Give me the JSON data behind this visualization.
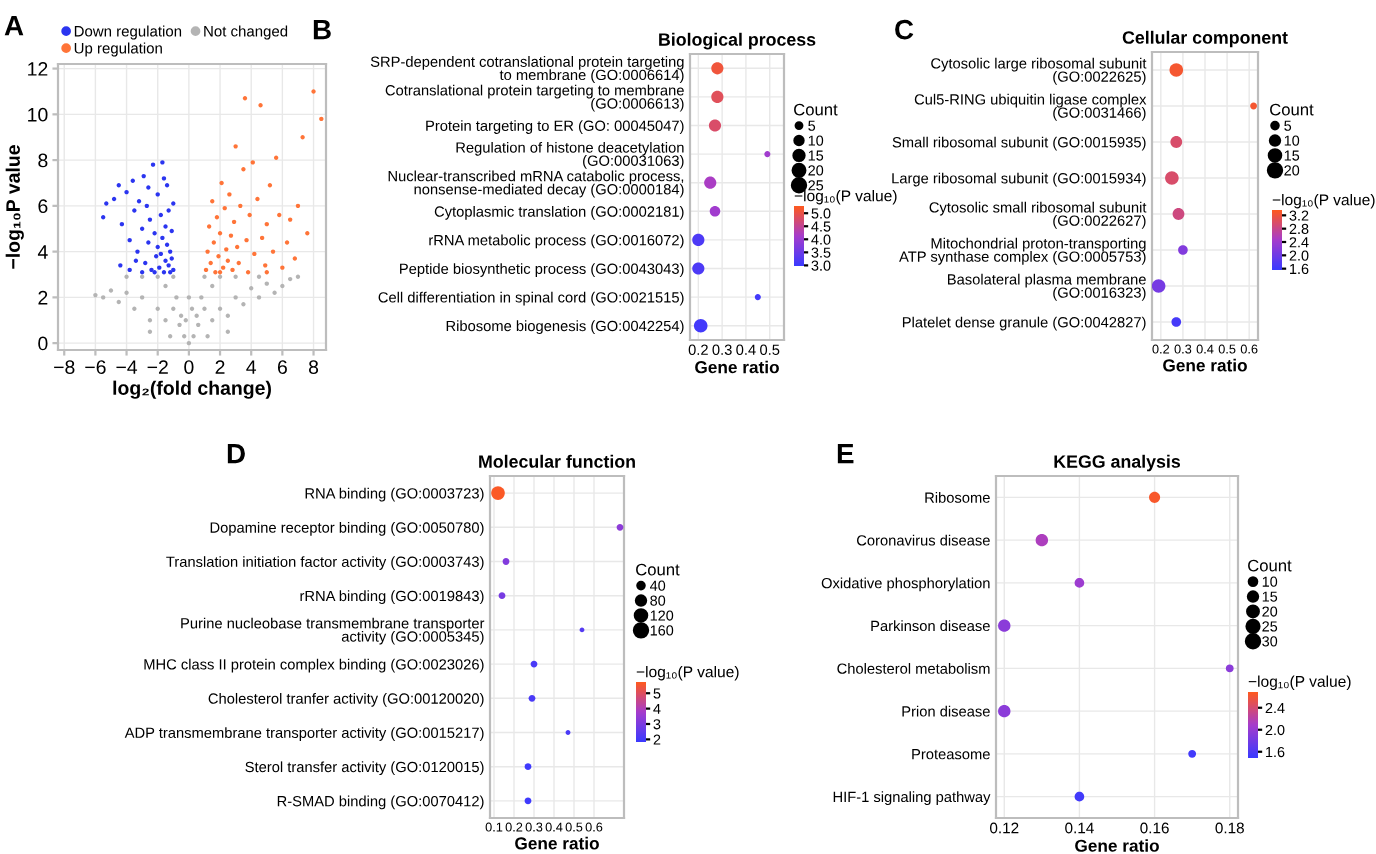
{
  "chart_data": [
    {
      "type": "scatter",
      "xlabel": "log₂(fold change)",
      "ylabel": "−log₁₀P value",
      "xlim": [
        -8.4,
        8.8
      ],
      "ylim": [
        -0.3,
        12.2
      ],
      "xticks": [
        {
          "value": -8,
          "label": "−8"
        },
        {
          "value": -6,
          "label": "−6"
        },
        {
          "value": -4,
          "label": "−4"
        },
        {
          "value": -2,
          "label": "−2"
        },
        0,
        2,
        4,
        6,
        8
      ],
      "yticks": [
        0,
        2,
        4,
        6,
        8,
        10,
        12
      ],
      "grid": true,
      "legend": "top",
      "marker": "circle",
      "annotations": [
        "A"
      ],
      "series": [
        {
          "name": "Down regulation",
          "color": "#2b35f0",
          "x": [
            -5.3,
            -5.5,
            -4.8,
            -4.5,
            -4.3,
            -4.0,
            -3.8,
            -3.6,
            -3.5,
            -3.3,
            -3.2,
            -3.0,
            -2.9,
            -2.8,
            -2.7,
            -2.6,
            -2.5,
            -2.4,
            -2.3,
            -2.2,
            -2.1,
            -2.0,
            -2.0,
            -1.9,
            -1.8,
            -1.8,
            -1.7,
            -1.7,
            -1.6,
            -1.5,
            -1.5,
            -1.4,
            -1.4,
            -1.3,
            -1.3,
            -1.2,
            -1.2,
            -1.1,
            -1.1,
            -1.0,
            -1.0,
            -2.2,
            -3.0,
            -3.8,
            -4.4,
            -1.6,
            -2.6,
            -3.4
          ],
          "values": [
            6.1,
            5.5,
            6.3,
            6.9,
            5.2,
            6.6,
            4.5,
            7.1,
            5.8,
            4.0,
            6.2,
            5.0,
            7.3,
            3.5,
            6.0,
            4.4,
            5.4,
            3.2,
            7.8,
            4.8,
            3.8,
            6.5,
            4.2,
            3.3,
            5.6,
            3.9,
            7.9,
            4.6,
            3.1,
            5.1,
            3.6,
            6.9,
            4.3,
            3.4,
            5.8,
            4.0,
            3.1,
            4.9,
            3.7,
            3.2,
            6.1,
            3.1,
            3.1,
            3.2,
            3.4,
            7.2,
            6.8,
            3.6
          ]
        },
        {
          "name": "Not changed",
          "color": "#b4b4b4",
          "x": [
            0,
            -0.3,
            0.3,
            -0.6,
            0.6,
            -1,
            1,
            -1,
            1,
            -0.8,
            0.8,
            -0.5,
            0.5,
            -1.5,
            1.5,
            -1.5,
            1.5,
            -2,
            2,
            -2,
            2,
            -2.5,
            2.5,
            -3,
            3,
            -3,
            3,
            -3.5,
            3.5,
            -4,
            4,
            -4.5,
            4.5,
            -5,
            5,
            -5.5,
            5.5,
            6,
            -6,
            6.5,
            -2.5,
            2.5,
            -1.2,
            1.2,
            -0.2,
            0.2,
            0,
            -4,
            4.5,
            7
          ],
          "values": [
            0,
            0.3,
            0.3,
            0.8,
            0.8,
            1.5,
            1.5,
            2.9,
            2.9,
            2.0,
            2.0,
            1.2,
            1.2,
            1.0,
            1.0,
            2.5,
            2.5,
            1.5,
            1.5,
            2.9,
            2.9,
            1.0,
            1.2,
            2.0,
            2.0,
            2.9,
            2.9,
            1.5,
            1.7,
            2.2,
            2.4,
            1.8,
            2.0,
            2.3,
            2.6,
            2.0,
            2.2,
            2.5,
            2.1,
            2.8,
            0.5,
            0.5,
            0.3,
            0.3,
            1.0,
            1.5,
            2.0,
            2.9,
            2.9,
            2.9
          ]
        },
        {
          "name": "Up regulation",
          "color": "#ff7438",
          "x": [
            1.1,
            1.2,
            1.3,
            1.4,
            1.5,
            1.6,
            1.7,
            1.8,
            1.9,
            2.0,
            2.1,
            2.2,
            2.3,
            2.4,
            2.5,
            2.6,
            2.7,
            2.8,
            2.9,
            3.0,
            3.1,
            3.2,
            3.3,
            3.5,
            3.6,
            3.7,
            3.8,
            3.9,
            4.1,
            4.2,
            4.4,
            4.6,
            4.7,
            4.9,
            5.0,
            5.2,
            5.4,
            5.6,
            5.8,
            6.0,
            6.3,
            6.5,
            6.8,
            7.0,
            7.3,
            7.6,
            8.0,
            8.5,
            5.0,
            2.0
          ],
          "values": [
            3.2,
            4.0,
            5.1,
            3.5,
            6.2,
            4.4,
            3.1,
            5.5,
            3.8,
            4.8,
            7.0,
            3.3,
            5.9,
            4.1,
            3.6,
            6.5,
            4.7,
            3.2,
            5.3,
            8.6,
            4.2,
            3.5,
            6.0,
            7.6,
            10.7,
            4.5,
            3.1,
            5.6,
            7.9,
            3.9,
            6.3,
            10.4,
            4.6,
            3.4,
            5.2,
            6.9,
            4.0,
            8.1,
            5.6,
            3.3,
            4.4,
            5.4,
            3.7,
            6.0,
            9.0,
            4.8,
            11.0,
            9.8,
            3.1,
            3.1
          ]
        }
      ]
    },
    {
      "type": "bubble",
      "orientation": "horizontal",
      "title": "Biological process",
      "xlabel": "Gene ratio",
      "annotations": [
        "B"
      ],
      "categories": [
        "SRP-dependent cotranslational protein targeting\nto membrane (GO:0006614)",
        "Cotranslational protein targeting to membrane\n(GO:0006613)",
        "Protein targeting to ER (GO: 00045047)",
        "Regulation of histone deacetylation\n(GO:00031063)",
        "Nuclear-transcribed mRNA catabolic process,\nnonsense-mediated decay (GO:0000184)",
        "Cytoplasmic translation (GO:0002181)",
        "rRNA metabolic process (GO:0016072)",
        "Peptide biosynthetic process (GO:0043043)",
        "Cell differentiation in spinal cord (GO:0021515)",
        "Ribosome biogenesis (GO:0042254)"
      ],
      "values": [
        0.28,
        0.28,
        0.27,
        0.49,
        0.25,
        0.27,
        0.2,
        0.2,
        0.45,
        0.21
      ],
      "sizes": [
        20,
        20,
        20,
        5,
        20,
        15,
        20,
        20,
        5,
        25
      ],
      "cvalues": [
        5.0,
        4.8,
        4.7,
        4.0,
        4.1,
        4.0,
        3.1,
        3.1,
        3.0,
        3.0
      ],
      "xlim": [
        0.165,
        0.56
      ],
      "xticks": [
        0.2,
        0.3,
        0.4,
        0.5
      ],
      "grid": true,
      "legend_title": "Count",
      "size_legend": [
        5,
        10,
        15,
        20,
        25
      ],
      "clabel": "−log₁₀(P value)",
      "clim": [
        2.9,
        5.2
      ],
      "cticks": [
        {
          "value": 3,
          "label": "3.0"
        },
        {
          "value": 3.5,
          "label": "3.5"
        },
        {
          "value": 4,
          "label": "4.0"
        },
        {
          "value": 4.5,
          "label": "4.5"
        },
        {
          "value": 5,
          "label": "5.0"
        }
      ]
    },
    {
      "type": "bubble",
      "orientation": "horizontal",
      "title": "Cellular component",
      "xlabel": "Gene ratio",
      "annotations": [
        "C"
      ],
      "categories": [
        "Cytosolic large ribosomal subunit\n(GO:0022625)",
        "Cul5-RING ubiquitin ligase complex\n(GO:0031466)",
        "Small ribosomal subunit (GO:0015935)",
        "Large ribosomal subunit (GO:0015934)",
        "Cytosolic small ribosomal subunit\n(GO:0022627)",
        "Mitochondrial proton-transporting\nATP synthase complex (GO:0005753)",
        "Basolateral plasma membrane\n(GO:0016323)",
        "Platelet dense granule (GO:0042827)"
      ],
      "values": [
        0.27,
        0.62,
        0.27,
        0.25,
        0.28,
        0.3,
        0.19,
        0.27
      ],
      "sizes": [
        20,
        5,
        15,
        20,
        15,
        10,
        20,
        10
      ],
      "cvalues": [
        3.2,
        3.2,
        2.9,
        2.9,
        2.8,
        2.1,
        2.0,
        1.6
      ],
      "xlim": [
        0.16,
        0.64
      ],
      "xticks": [
        0.2,
        0.3,
        0.4,
        0.5,
        0.6
      ],
      "grid": true,
      "legend_title": "Count",
      "size_legend": [
        5,
        10,
        15,
        20
      ],
      "clabel": "−log₁₀(P value)",
      "clim": [
        1.5,
        3.3
      ],
      "cticks": [
        1.6,
        {
          "value": 2,
          "label": "2.0"
        },
        2.4,
        2.8,
        3.2
      ]
    },
    {
      "type": "bubble",
      "orientation": "horizontal",
      "title": "Molecular function",
      "xlabel": "Gene ratio",
      "annotations": [
        "D"
      ],
      "categories": [
        "RNA binding (GO:0003723)",
        "Dopamine receptor binding (GO:0050780)",
        "Translation initiation factor activity (GO:0003743)",
        "rRNA binding (GO:0019843)",
        "Purine nucleobase transmembrane transporter\nactivity (GO:0005345)",
        "MHC class II protein complex binding (GO:0023026)",
        "Cholesterol tranfer activity (GO:00120020)",
        "ADP transmembrane transporter activity (GO:0015217)",
        "Sterol transfer activity (GO:0120015)",
        "R-SMAD binding (GO:0070412)"
      ],
      "values": [
        0.12,
        0.73,
        0.16,
        0.14,
        0.54,
        0.3,
        0.29,
        0.47,
        0.27,
        0.27
      ],
      "sizes": [
        160,
        40,
        40,
        40,
        20,
        40,
        40,
        20,
        40,
        40
      ],
      "cvalues": [
        5.5,
        3.2,
        3.0,
        2.8,
        2.2,
        2.0,
        2.0,
        2.0,
        1.8,
        1.8
      ],
      "xlim": [
        0.08,
        0.75
      ],
      "xticks": [
        0.1,
        0.2,
        0.3,
        0.4,
        0.5,
        0.6
      ],
      "grid": true,
      "legend_title": "Count",
      "size_legend": [
        40,
        80,
        120,
        160
      ],
      "clabel": "−log₁₀(P value)",
      "clim": [
        1.7,
        5.6
      ],
      "cticks": [
        2,
        3,
        4,
        5
      ]
    },
    {
      "type": "bubble",
      "orientation": "horizontal",
      "title": "KEGG analysis",
      "xlabel": "Gene ratio",
      "annotations": [
        "E"
      ],
      "categories": [
        "Ribosome",
        "Coronavirus disease",
        "Oxidative phosphorylation",
        "Parkinson disease",
        "Cholesterol metabolism",
        "Prion disease",
        "Proteasome",
        "HIF-1 signaling pathway"
      ],
      "values": [
        0.16,
        0.13,
        0.14,
        0.12,
        0.18,
        0.12,
        0.17,
        0.14
      ],
      "sizes": [
        20,
        25,
        15,
        25,
        10,
        25,
        10,
        15
      ],
      "cvalues": [
        2.6,
        2.1,
        2.0,
        1.9,
        1.9,
        1.9,
        1.5,
        1.5
      ],
      "xlim": [
        0.1178,
        0.1822
      ],
      "xticks": [
        0.12,
        0.14,
        0.16,
        0.18
      ],
      "grid": true,
      "legend_title": "Count",
      "size_legend": [
        10,
        15,
        20,
        25,
        30
      ],
      "clabel": "−log₁₀(P value)",
      "clim": [
        1.45,
        2.65
      ],
      "cticks": [
        1.6,
        {
          "value": 2,
          "label": "2.0"
        },
        2.4
      ]
    }
  ]
}
